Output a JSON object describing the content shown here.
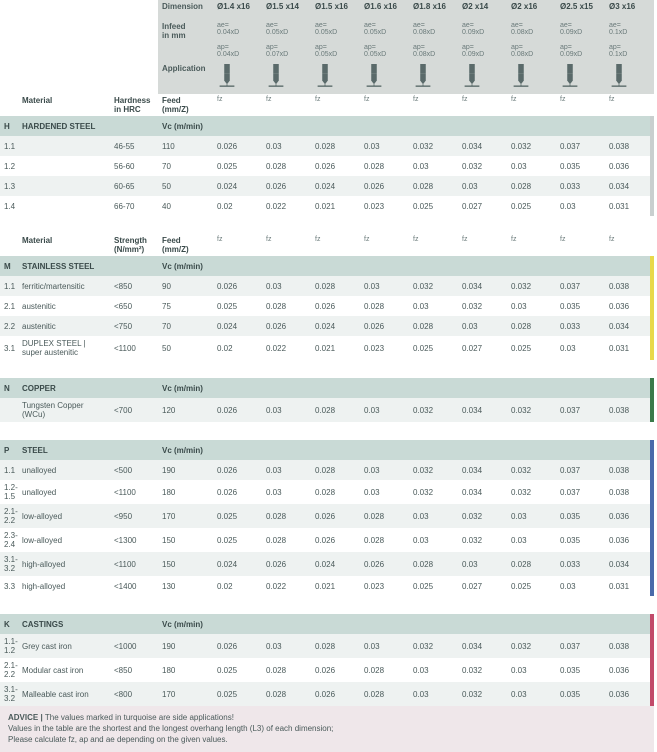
{
  "header": {
    "labels": {
      "dimension": "Dimension",
      "infeed": "Infeed\nin mm",
      "application": "Application",
      "material": "Material",
      "hardness": "Hardness\nin HRC",
      "strength": "Strength\n(N/mm²)",
      "feed": "Feed (mm/Z)",
      "vc": "Vc (m/min)"
    },
    "dims": [
      "Ø1.4 x16",
      "Ø1.5 x14",
      "Ø1.5 x16",
      "Ø1.6 x16",
      "Ø1.8 x16",
      "Ø2 x14",
      "Ø2 x16",
      "Ø2.5 x15",
      "Ø3 x16"
    ],
    "ae": [
      "ae=\n0.04xD",
      "ae=\n0.05xD",
      "ae=\n0.05xD",
      "ae=\n0.05xD",
      "ae=\n0.08xD",
      "ae=\n0.09xD",
      "ae=\n0.08xD",
      "ae=\n0.09xD",
      "ae=\n0.1xD"
    ],
    "ap": [
      "ap=\n0.04xD",
      "ap=\n0.07xD",
      "ap=\n0.05xD",
      "ap=\n0.05xD",
      "ap=\n0.08xD",
      "ap=\n0.09xD",
      "ap=\n0.08xD",
      "ap=\n0.09xD",
      "ap=\n0.1xD"
    ],
    "fz": [
      "fz",
      "fz",
      "fz",
      "fz",
      "fz",
      "fz",
      "fz",
      "fz",
      "fz"
    ]
  },
  "groups": [
    {
      "code": "H",
      "title": "HARDENED STEEL",
      "strengthLabel": "Hardness\nin HRC",
      "bar": "bar-h",
      "rows": [
        {
          "n": "1.1",
          "mat": "",
          "s": "46-55",
          "vc": "110",
          "v": [
            "0.026",
            "0.03",
            "0.028",
            "0.03",
            "0.032",
            "0.034",
            "0.032",
            "0.037",
            "0.038"
          ]
        },
        {
          "n": "1.2",
          "mat": "",
          "s": "56-60",
          "vc": "70",
          "v": [
            "0.025",
            "0.028",
            "0.026",
            "0.028",
            "0.03",
            "0.032",
            "0.03",
            "0.035",
            "0.036"
          ]
        },
        {
          "n": "1.3",
          "mat": "",
          "s": "60-65",
          "vc": "50",
          "v": [
            "0.024",
            "0.026",
            "0.024",
            "0.026",
            "0.028",
            "0.03",
            "0.028",
            "0.033",
            "0.034"
          ]
        },
        {
          "n": "1.4",
          "mat": "",
          "s": "66-70",
          "vc": "40",
          "v": [
            "0.02",
            "0.022",
            "0.021",
            "0.023",
            "0.025",
            "0.027",
            "0.025",
            "0.03",
            "0.031"
          ]
        }
      ]
    },
    {
      "code": "M",
      "title": "STAINLESS STEEL",
      "strengthLabel": "Strength\n(N/mm²)",
      "bar": "bar-m",
      "showFeedHeader": true,
      "rows": [
        {
          "n": "1.1",
          "mat": "ferritic/martensitic",
          "s": "<850",
          "vc": "90",
          "v": [
            "0.026",
            "0.03",
            "0.028",
            "0.03",
            "0.032",
            "0.034",
            "0.032",
            "0.037",
            "0.038"
          ]
        },
        {
          "n": "2.1",
          "mat": "austenitic",
          "s": "<650",
          "vc": "75",
          "v": [
            "0.025",
            "0.028",
            "0.026",
            "0.028",
            "0.03",
            "0.032",
            "0.03",
            "0.035",
            "0.036"
          ]
        },
        {
          "n": "2.2",
          "mat": "austenitic",
          "s": "<750",
          "vc": "70",
          "v": [
            "0.024",
            "0.026",
            "0.024",
            "0.026",
            "0.028",
            "0.03",
            "0.028",
            "0.033",
            "0.034"
          ]
        },
        {
          "n": "3.1",
          "mat": "DUPLEX STEEL | super austenitic",
          "s": "<1100",
          "vc": "50",
          "v": [
            "0.02",
            "0.022",
            "0.021",
            "0.023",
            "0.025",
            "0.027",
            "0.025",
            "0.03",
            "0.031"
          ]
        }
      ]
    },
    {
      "code": "N",
      "title": "COPPER",
      "bar": "bar-n",
      "rows": [
        {
          "n": "",
          "mat": "Tungsten Copper (WCu)",
          "s": "<700",
          "vc": "120",
          "v": [
            "0.026",
            "0.03",
            "0.028",
            "0.03",
            "0.032",
            "0.034",
            "0.032",
            "0.037",
            "0.038"
          ]
        }
      ]
    },
    {
      "code": "P",
      "title": "STEEL",
      "bar": "bar-p",
      "rows": [
        {
          "n": "1.1",
          "mat": "unalloyed",
          "s": "<500",
          "vc": "190",
          "v": [
            "0.026",
            "0.03",
            "0.028",
            "0.03",
            "0.032",
            "0.034",
            "0.032",
            "0.037",
            "0.038"
          ]
        },
        {
          "n": "1.2-1.5",
          "mat": "unalloyed",
          "s": "<1100",
          "vc": "180",
          "v": [
            "0.026",
            "0.03",
            "0.028",
            "0.03",
            "0.032",
            "0.034",
            "0.032",
            "0.037",
            "0.038"
          ]
        },
        {
          "n": "2.1-2.2",
          "mat": "low-alloyed",
          "s": "<950",
          "vc": "170",
          "v": [
            "0.025",
            "0.028",
            "0.026",
            "0.028",
            "0.03",
            "0.032",
            "0.03",
            "0.035",
            "0.036"
          ]
        },
        {
          "n": "2.3-2.4",
          "mat": "low-alloyed",
          "s": "<1300",
          "vc": "150",
          "v": [
            "0.025",
            "0.028",
            "0.026",
            "0.028",
            "0.03",
            "0.032",
            "0.03",
            "0.035",
            "0.036"
          ]
        },
        {
          "n": "3.1-3.2",
          "mat": "high-alloyed",
          "s": "<1100",
          "vc": "150",
          "v": [
            "0.024",
            "0.026",
            "0.024",
            "0.026",
            "0.028",
            "0.03",
            "0.028",
            "0.033",
            "0.034"
          ]
        },
        {
          "n": "3.3",
          "mat": "high-alloyed",
          "s": "<1400",
          "vc": "130",
          "v": [
            "0.02",
            "0.022",
            "0.021",
            "0.023",
            "0.025",
            "0.027",
            "0.025",
            "0.03",
            "0.031"
          ]
        }
      ]
    },
    {
      "code": "K",
      "title": "CASTINGS",
      "bar": "bar-k",
      "rows": [
        {
          "n": "1.1-1.2",
          "mat": "Grey cast iron",
          "s": "<1000",
          "vc": "190",
          "v": [
            "0.026",
            "0.03",
            "0.028",
            "0.03",
            "0.032",
            "0.034",
            "0.032",
            "0.037",
            "0.038"
          ]
        },
        {
          "n": "2.1-2.2",
          "mat": "Modular cast iron",
          "s": "<850",
          "vc": "180",
          "v": [
            "0.025",
            "0.028",
            "0.026",
            "0.028",
            "0.03",
            "0.032",
            "0.03",
            "0.035",
            "0.036"
          ]
        },
        {
          "n": "3.1-3.2",
          "mat": "Malleable cast iron",
          "s": "<800",
          "vc": "170",
          "v": [
            "0.025",
            "0.028",
            "0.026",
            "0.028",
            "0.03",
            "0.032",
            "0.03",
            "0.035",
            "0.036"
          ]
        }
      ]
    }
  ],
  "advice": {
    "title": "ADVICE | ",
    "l1": "The values marked in turquoise are side applications!",
    "l2": "Values in the table are the shortest and the longest overhang length (L3) of each dimension;",
    "l3": "Please calculate fz, ap and ae depending on the given values."
  },
  "colors": {
    "hdr": "#d6dad8",
    "grp": "#c9dad6",
    "odd": "#eef2f1",
    "advice": "#efe7ea"
  }
}
